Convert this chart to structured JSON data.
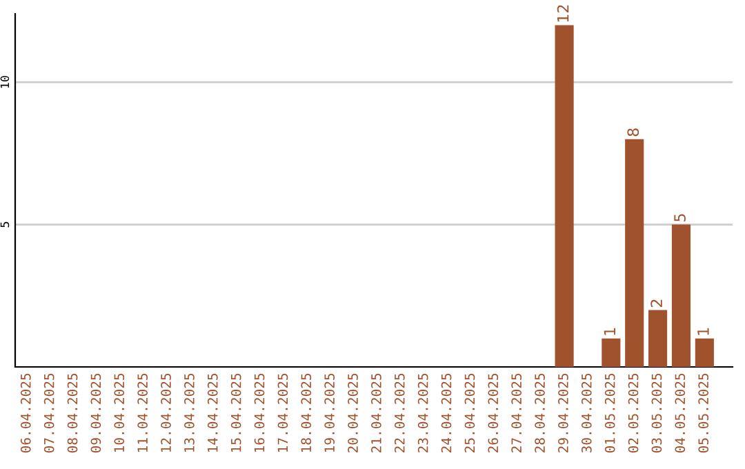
{
  "chart_data": {
    "type": "bar",
    "categories": [
      "06.04.2025",
      "07.04.2025",
      "08.04.2025",
      "09.04.2025",
      "10.04.2025",
      "11.04.2025",
      "12.04.2025",
      "13.04.2025",
      "14.04.2025",
      "15.04.2025",
      "16.04.2025",
      "17.04.2025",
      "18.04.2025",
      "19.04.2025",
      "20.04.2025",
      "21.04.2025",
      "22.04.2025",
      "23.04.2025",
      "24.04.2025",
      "25.04.2025",
      "26.04.2025",
      "27.04.2025",
      "28.04.2025",
      "29.04.2025",
      "30.04.2025",
      "01.05.2025",
      "02.05.2025",
      "03.05.2025",
      "04.05.2025",
      "05.05.2025"
    ],
    "values": [
      0,
      0,
      0,
      0,
      0,
      0,
      0,
      0,
      0,
      0,
      0,
      0,
      0,
      0,
      0,
      0,
      0,
      0,
      0,
      0,
      0,
      0,
      0,
      12,
      0,
      1,
      8,
      2,
      5,
      1
    ],
    "value_labels": [
      null,
      null,
      null,
      null,
      null,
      null,
      null,
      null,
      null,
      null,
      null,
      null,
      null,
      null,
      null,
      null,
      null,
      null,
      null,
      null,
      null,
      null,
      null,
      "12",
      null,
      "1",
      "8",
      "2",
      "5",
      "1"
    ],
    "color": "#a0522d",
    "ylim": [
      0,
      12.4
    ],
    "yticks": [
      5,
      10
    ],
    "grid": "y"
  }
}
